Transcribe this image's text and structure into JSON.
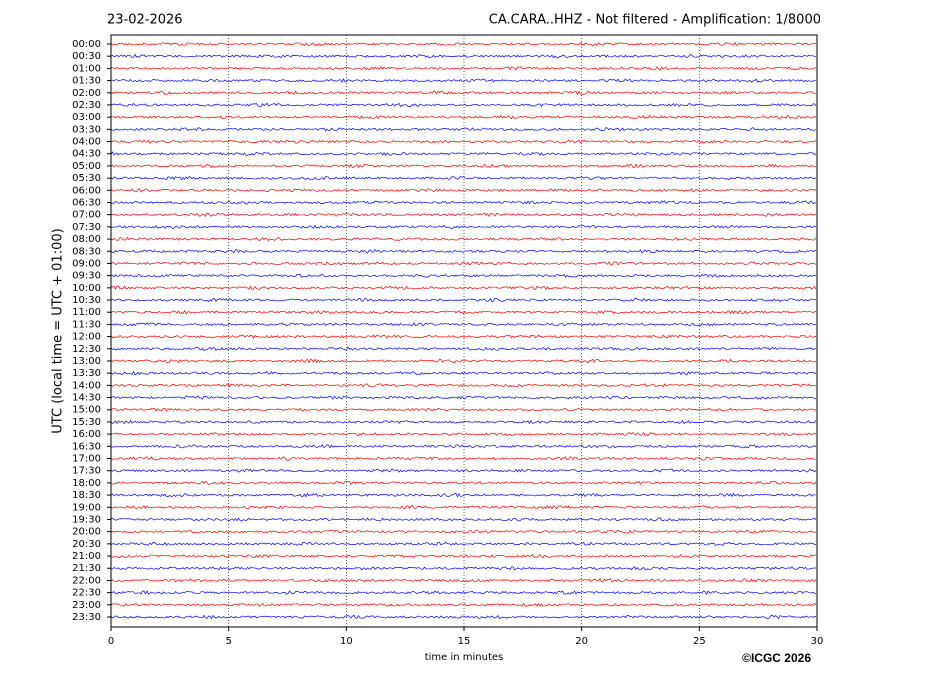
{
  "chart_data": {
    "type": "helicorder",
    "date": "23-02-2026",
    "title": "CA.CARA..HHZ - Not filtered - Amplification: 1/8000",
    "ylabel": "UTC (local time = UTC + 01:00)",
    "xlabel": "time in minutes",
    "credit": "©ICGC 2026",
    "categories": [
      "00:00",
      "00:30",
      "01:00",
      "01:30",
      "02:00",
      "02:30",
      "03:00",
      "03:30",
      "04:00",
      "04:30",
      "05:00",
      "05:30",
      "06:00",
      "06:30",
      "07:00",
      "07:30",
      "08:00",
      "08:30",
      "09:00",
      "09:30",
      "10:00",
      "10:30",
      "11:00",
      "11:30",
      "12:00",
      "12:30",
      "13:00",
      "13:30",
      "14:00",
      "14:30",
      "15:00",
      "15:30",
      "16:00",
      "16:30",
      "17:00",
      "17:30",
      "18:00",
      "18:30",
      "19:00",
      "19:30",
      "20:00",
      "20:30",
      "21:00",
      "21:30",
      "22:00",
      "22:30",
      "23:00",
      "23:30"
    ],
    "colors": [
      "#ff0000",
      "#0000ff"
    ],
    "xlim": [
      0,
      30
    ],
    "xticks": [
      0,
      5,
      10,
      15,
      20,
      25,
      30
    ],
    "grid": true
  }
}
